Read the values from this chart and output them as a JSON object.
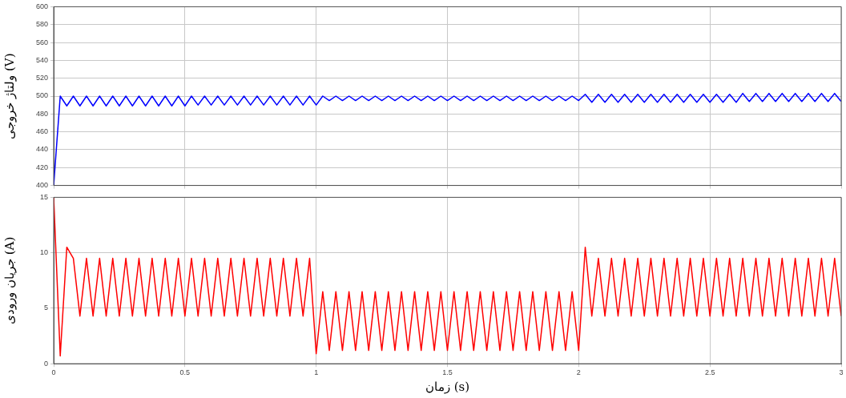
{
  "chart_data": [
    {
      "type": "line",
      "ylabel": "ولتاژ خروجی (V)",
      "x": [
        0,
        0.025,
        0.05,
        0.075,
        0.1,
        0.125,
        0.15,
        0.175,
        0.2,
        0.225,
        0.25,
        0.275,
        0.3,
        0.325,
        0.35,
        0.375,
        0.4,
        0.425,
        0.45,
        0.475,
        0.5,
        0.525,
        0.55,
        0.575,
        0.6,
        0.625,
        0.65,
        0.675,
        0.7,
        0.725,
        0.75,
        0.775,
        0.8,
        0.825,
        0.85,
        0.875,
        0.9,
        0.925,
        0.95,
        0.975,
        1,
        1.025,
        1.05,
        1.075,
        1.1,
        1.125,
        1.15,
        1.175,
        1.2,
        1.225,
        1.25,
        1.275,
        1.3,
        1.325,
        1.35,
        1.375,
        1.4,
        1.425,
        1.45,
        1.475,
        1.5,
        1.525,
        1.55,
        1.575,
        1.6,
        1.625,
        1.65,
        1.675,
        1.7,
        1.725,
        1.75,
        1.775,
        1.8,
        1.825,
        1.85,
        1.875,
        1.9,
        1.925,
        1.95,
        1.975,
        2,
        2.025,
        2.05,
        2.075,
        2.1,
        2.125,
        2.15,
        2.175,
        2.2,
        2.225,
        2.25,
        2.275,
        2.3,
        2.325,
        2.35,
        2.375,
        2.4,
        2.425,
        2.45,
        2.475,
        2.5,
        2.525,
        2.55,
        2.575,
        2.6,
        2.625,
        2.65,
        2.675,
        2.7,
        2.725,
        2.75,
        2.775,
        2.8,
        2.825,
        2.85,
        2.875,
        2.9,
        2.925,
        2.95,
        2.975,
        3
      ],
      "series": [
        {
          "color": "#0000ff",
          "values": [
            400,
            500,
            489,
            500,
            489,
            500,
            489,
            500,
            489,
            500,
            489,
            500,
            489,
            500,
            489,
            500,
            489,
            500,
            489,
            500,
            489,
            500,
            490,
            500,
            490,
            500,
            490,
            500,
            490,
            500,
            490,
            500,
            490,
            500,
            490,
            500,
            490,
            500,
            490,
            500,
            490,
            500,
            495,
            500,
            495,
            500,
            495,
            500,
            495,
            500,
            495,
            500,
            495,
            500,
            495,
            500,
            495,
            500,
            495,
            500,
            495,
            500,
            495,
            500,
            495,
            500,
            495,
            500,
            495,
            500,
            495,
            500,
            495,
            500,
            495,
            500,
            495,
            500,
            495,
            500,
            495,
            502,
            493,
            502,
            493,
            502,
            493,
            502,
            493,
            502,
            493,
            502,
            493,
            502,
            493,
            502,
            493,
            502,
            493,
            502,
            493,
            502,
            493,
            502,
            493,
            503,
            494,
            503,
            494,
            503,
            494,
            503,
            494,
            503,
            494,
            503,
            494,
            503,
            494,
            503,
            494
          ]
        }
      ],
      "xlim": [
        0,
        3
      ],
      "xticks": [
        0,
        0.5,
        1,
        1.5,
        2,
        2.5,
        3
      ],
      "ylim": [
        400,
        600
      ],
      "yticks": [
        400,
        420,
        440,
        460,
        480,
        500,
        520,
        540,
        560,
        580,
        600
      ],
      "grid": true,
      "tick_labels": "y",
      "marker": "none",
      "line_style": "solid"
    },
    {
      "type": "line",
      "xlabel": "زمان (s)",
      "ylabel": "جریان ورودی (A)",
      "x": [
        0,
        0.025,
        0.05,
        0.075,
        0.1,
        0.125,
        0.15,
        0.175,
        0.2,
        0.225,
        0.25,
        0.275,
        0.3,
        0.325,
        0.35,
        0.375,
        0.4,
        0.425,
        0.45,
        0.475,
        0.5,
        0.525,
        0.55,
        0.575,
        0.6,
        0.625,
        0.65,
        0.675,
        0.7,
        0.725,
        0.75,
        0.775,
        0.8,
        0.825,
        0.85,
        0.875,
        0.9,
        0.925,
        0.95,
        0.975,
        1,
        1.025,
        1.05,
        1.075,
        1.1,
        1.125,
        1.15,
        1.175,
        1.2,
        1.225,
        1.25,
        1.275,
        1.3,
        1.325,
        1.35,
        1.375,
        1.4,
        1.425,
        1.45,
        1.475,
        1.5,
        1.525,
        1.55,
        1.575,
        1.6,
        1.625,
        1.65,
        1.675,
        1.7,
        1.725,
        1.75,
        1.775,
        1.8,
        1.825,
        1.85,
        1.875,
        1.9,
        1.925,
        1.95,
        1.975,
        2,
        2.025,
        2.05,
        2.075,
        2.1,
        2.125,
        2.15,
        2.175,
        2.2,
        2.225,
        2.25,
        2.275,
        2.3,
        2.325,
        2.35,
        2.375,
        2.4,
        2.425,
        2.45,
        2.475,
        2.5,
        2.525,
        2.55,
        2.575,
        2.6,
        2.625,
        2.65,
        2.675,
        2.7,
        2.725,
        2.75,
        2.775,
        2.8,
        2.825,
        2.85,
        2.875,
        2.9,
        2.925,
        2.95,
        2.975,
        3
      ],
      "series": [
        {
          "color": "#ff0000",
          "values": [
            15,
            0.7,
            10.5,
            9.5,
            4.3,
            9.5,
            4.3,
            9.5,
            4.3,
            9.5,
            4.3,
            9.5,
            4.3,
            9.5,
            4.3,
            9.5,
            4.3,
            9.5,
            4.3,
            9.5,
            4.3,
            9.5,
            4.3,
            9.5,
            4.3,
            9.5,
            4.3,
            9.5,
            4.3,
            9.5,
            4.3,
            9.5,
            4.3,
            9.5,
            4.3,
            9.5,
            4.3,
            9.5,
            4.3,
            9.5,
            0.9,
            6.5,
            1.2,
            6.5,
            1.2,
            6.5,
            1.2,
            6.5,
            1.2,
            6.5,
            1.2,
            6.5,
            1.2,
            6.5,
            1.2,
            6.5,
            1.2,
            6.5,
            1.2,
            6.5,
            1.2,
            6.5,
            1.2,
            6.5,
            1.2,
            6.5,
            1.2,
            6.5,
            1.2,
            6.5,
            1.2,
            6.5,
            1.2,
            6.5,
            1.2,
            6.5,
            1.2,
            6.5,
            1.2,
            6.5,
            1.2,
            10.5,
            4.3,
            9.5,
            4.3,
            9.5,
            4.3,
            9.5,
            4.3,
            9.5,
            4.3,
            9.5,
            4.3,
            9.5,
            4.3,
            9.5,
            4.3,
            9.5,
            4.3,
            9.5,
            4.3,
            9.5,
            4.3,
            9.5,
            4.3,
            9.5,
            4.3,
            9.5,
            4.3,
            9.5,
            4.3,
            9.5,
            4.3,
            9.5,
            4.3,
            9.5,
            4.3,
            9.5,
            4.3,
            9.5,
            4.3
          ]
        }
      ],
      "xlim": [
        0,
        3
      ],
      "xticks": [
        0,
        0.5,
        1,
        1.5,
        2,
        2.5,
        3
      ],
      "ylim": [
        0,
        15
      ],
      "yticks": [
        0,
        5,
        10,
        15
      ],
      "grid": true,
      "marker": "none",
      "line_style": "solid"
    }
  ]
}
